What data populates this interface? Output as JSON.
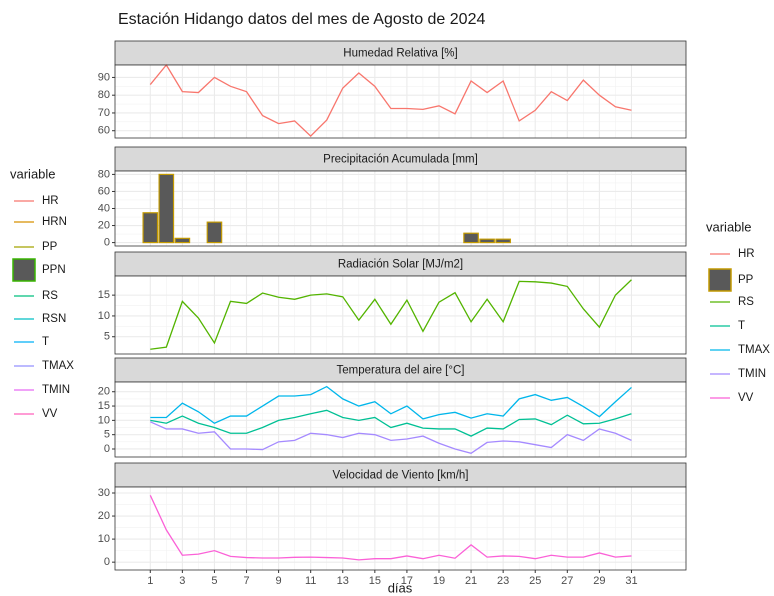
{
  "title": "Estación Hidango datos del mes de Agosto de 2024",
  "x_label": "días",
  "x": [
    1,
    2,
    3,
    4,
    5,
    6,
    7,
    8,
    9,
    10,
    11,
    12,
    13,
    14,
    15,
    16,
    17,
    18,
    19,
    20,
    21,
    22,
    23,
    24,
    25,
    26,
    27,
    28,
    29,
    30,
    31
  ],
  "xlim": [
    -1.2,
    34.4
  ],
  "xticks": [
    1,
    3,
    5,
    7,
    9,
    11,
    13,
    15,
    17,
    19,
    21,
    23,
    25,
    27,
    29,
    31
  ],
  "grid": true,
  "legends": [
    {
      "title": "variable",
      "position": "left",
      "entries": [
        {
          "name": "HR",
          "color": "#F8766D",
          "key": "line"
        },
        {
          "name": "HRN",
          "color": "#D89000",
          "key": "line"
        },
        {
          "name": "PP",
          "color": "#A3A500",
          "key": "line"
        },
        {
          "name": "PPN",
          "color": "#39B600",
          "fill": "#595959",
          "key": "box"
        },
        {
          "name": "RS",
          "color": "#00BF7D",
          "key": "line"
        },
        {
          "name": "RSN",
          "color": "#00BFC4",
          "key": "line"
        },
        {
          "name": "T",
          "color": "#00B0F6",
          "key": "line"
        },
        {
          "name": "TMAX",
          "color": "#9590FF",
          "key": "line"
        },
        {
          "name": "TMIN",
          "color": "#E76BF3",
          "key": "line"
        },
        {
          "name": "VV",
          "color": "#FF62BC",
          "key": "line"
        }
      ]
    },
    {
      "title": "variable",
      "position": "right",
      "entries": [
        {
          "name": "HR",
          "color": "#F8766D",
          "key": "line"
        },
        {
          "name": "PP",
          "color": "#C49A00",
          "fill": "#595959",
          "key": "box"
        },
        {
          "name": "RS",
          "color": "#53B400",
          "key": "line"
        },
        {
          "name": "T",
          "color": "#00C094",
          "key": "line"
        },
        {
          "name": "TMAX",
          "color": "#00B6EB",
          "key": "line"
        },
        {
          "name": "TMIN",
          "color": "#A58AFF",
          "key": "line"
        },
        {
          "name": "VV",
          "color": "#FB61D7",
          "key": "line"
        }
      ]
    }
  ],
  "chart_data": [
    {
      "type": "line",
      "strip": "Humedad Relativa [%]",
      "ylim": [
        55.9,
        97
      ],
      "yticks": [
        60,
        70,
        80,
        90
      ],
      "series": [
        {
          "name": "HR",
          "color": "#F8766D",
          "values": [
            86,
            97,
            82,
            81.5,
            90,
            85,
            82,
            68.5,
            64,
            65.5,
            57,
            66,
            84,
            92.5,
            85,
            72.5,
            72.5,
            72,
            74,
            69.5,
            88,
            81.5,
            88,
            65.5,
            71.5,
            82,
            77,
            88.5,
            80,
            73.5,
            71.5
          ]
        }
      ]
    },
    {
      "type": "bar",
      "strip": "Precipitación Acumulada [mm]",
      "ylim": [
        -4,
        84
      ],
      "yticks": [
        0,
        20,
        40,
        60,
        80
      ],
      "series": [
        {
          "name": "PP",
          "color": "#C49A00",
          "fill": "#595959",
          "values": [
            35,
            80,
            5,
            0,
            24,
            0,
            0,
            0,
            0,
            0,
            0,
            0,
            0,
            0,
            0,
            0,
            0,
            0,
            0,
            0,
            11,
            4,
            4,
            0,
            0,
            0,
            0,
            0,
            0,
            0,
            0
          ]
        }
      ]
    },
    {
      "type": "line",
      "strip": "Radiación Solar [MJ/m2]",
      "ylim": [
        0.85,
        19.6
      ],
      "yticks": [
        5,
        10,
        15
      ],
      "series": [
        {
          "name": "RS",
          "color": "#53B400",
          "values": [
            2,
            2.5,
            13.5,
            9.5,
            3.5,
            13.5,
            13,
            15.5,
            14.5,
            14,
            15,
            15.3,
            14.6,
            9,
            14,
            8,
            13.8,
            6.3,
            13.3,
            15.6,
            8.6,
            14,
            8.6,
            18.3,
            18.2,
            17.9,
            17.1,
            11.7,
            7.3,
            15,
            18.7
          ]
        }
      ]
    },
    {
      "type": "line",
      "strip": "Temperatura del aire [°C]",
      "ylim": [
        -2.8,
        23.4
      ],
      "yticks": [
        0,
        5,
        10,
        15,
        20
      ],
      "series": [
        {
          "name": "T",
          "color": "#00C094",
          "values": [
            10,
            9,
            11.5,
            9,
            7.5,
            5.5,
            5.5,
            7.5,
            10,
            11,
            12.3,
            13.5,
            11,
            10,
            11,
            7.5,
            9,
            7.3,
            7,
            7,
            4.5,
            7.3,
            7,
            10.3,
            10.5,
            8.5,
            11.8,
            8.8,
            9,
            10.5,
            12.3
          ]
        },
        {
          "name": "TMAX",
          "color": "#00B6EB",
          "values": [
            11,
            11,
            16,
            13,
            9,
            11.5,
            11.5,
            15,
            18.5,
            18.5,
            19,
            21.8,
            17.5,
            15,
            16.5,
            12.3,
            15,
            10.5,
            12,
            12.8,
            10.8,
            12.3,
            11.5,
            17.5,
            19,
            17,
            18,
            14.8,
            11.3,
            16.5,
            21.5
          ]
        },
        {
          "name": "TMIN",
          "color": "#A58AFF",
          "values": [
            9.5,
            7,
            7,
            5.5,
            6,
            0,
            0,
            -0.2,
            2.5,
            3,
            5.5,
            5,
            4,
            5.5,
            5,
            3,
            3.5,
            4.5,
            2,
            0,
            -1.5,
            2.3,
            2.8,
            2.5,
            1.5,
            0.5,
            5,
            3,
            7,
            5.5,
            3
          ]
        }
      ]
    },
    {
      "type": "line",
      "strip": "Velocidad de Viento [km/h]",
      "ylim": [
        -3.4,
        32.6
      ],
      "yticks": [
        0,
        10,
        20,
        30
      ],
      "series": [
        {
          "name": "VV",
          "color": "#FB61D7",
          "values": [
            29,
            14,
            3,
            3.5,
            5,
            2.5,
            2,
            1.8,
            1.8,
            2.1,
            2.2,
            2,
            1.8,
            1,
            1.5,
            1.5,
            2.7,
            1.5,
            3,
            1.7,
            7.5,
            2.2,
            2.7,
            2.5,
            1.5,
            3,
            2.2,
            2.2,
            4,
            2.2,
            2.7
          ]
        }
      ]
    }
  ]
}
